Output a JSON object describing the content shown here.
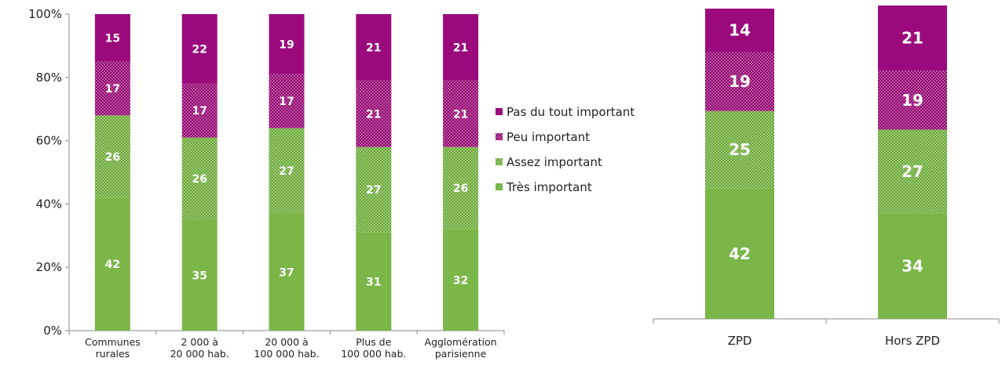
{
  "chart_data": [
    {
      "type": "bar",
      "stacked": true,
      "categories": [
        [
          "Communes",
          "rurales"
        ],
        [
          "2 000 à",
          "20 000 hab."
        ],
        [
          "20 000 à",
          "100 000 hab."
        ],
        [
          "Plus de",
          "100 000 hab."
        ],
        [
          "Agglomération",
          "parisienne"
        ]
      ],
      "series": [
        {
          "name": "Très important",
          "values": [
            42,
            35,
            37,
            31,
            32
          ],
          "color": "#7ab648",
          "pattern": "solid"
        },
        {
          "name": "Assez important",
          "values": [
            26,
            26,
            27,
            27,
            26
          ],
          "color": "#7ab648",
          "pattern": "dotted"
        },
        {
          "name": "Peu important",
          "values": [
            17,
            17,
            17,
            21,
            21
          ],
          "color": "#9b0a7c",
          "pattern": "dotted"
        },
        {
          "name": "Pas du tout important",
          "values": [
            15,
            22,
            19,
            21,
            21
          ],
          "color": "#9b0a7c",
          "pattern": "solid"
        }
      ],
      "ylim": [
        0,
        100
      ],
      "yticks": [
        "0%",
        "20%",
        "40%",
        "60%",
        "80%",
        "100%"
      ],
      "legend_position": "right"
    },
    {
      "type": "bar",
      "stacked": true,
      "categories": [
        [
          "ZPD"
        ],
        [
          "Hors ZPD"
        ]
      ],
      "series": [
        {
          "name": "Très important",
          "values": [
            42,
            34
          ],
          "color": "#7ab648",
          "pattern": "solid"
        },
        {
          "name": "Assez important",
          "values": [
            25,
            27
          ],
          "color": "#7ab648",
          "pattern": "dotted"
        },
        {
          "name": "Peu important",
          "values": [
            19,
            19
          ],
          "color": "#9b0a7c",
          "pattern": "dotted"
        },
        {
          "name": "Pas du tout important",
          "values": [
            14,
            21
          ],
          "color": "#9b0a7c",
          "pattern": "solid"
        }
      ],
      "ylim": [
        0,
        100
      ]
    }
  ]
}
